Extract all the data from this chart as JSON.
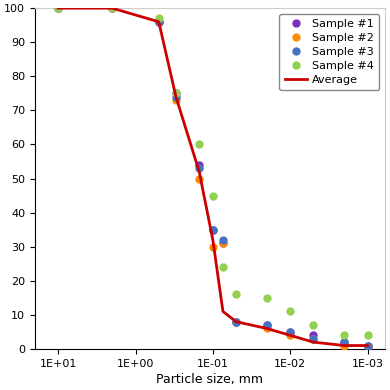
{
  "xlabel": "Particle size, mm",
  "ylim": [
    0,
    100
  ],
  "yticks": [
    0,
    10,
    20,
    30,
    40,
    50,
    60,
    70,
    80,
    90,
    100
  ],
  "sample1_x": [
    10,
    2.0,
    0.5,
    0.3,
    0.15,
    0.1,
    0.074,
    0.05,
    0.02,
    0.01,
    0.005,
    0.002,
    0.001
  ],
  "sample1_y": [
    100,
    100,
    96,
    75,
    54,
    35,
    31,
    8,
    7,
    5,
    4,
    2,
    1
  ],
  "sample1_color": "#7B2FBE",
  "sample2_x": [
    10,
    2.0,
    0.5,
    0.3,
    0.15,
    0.1,
    0.074,
    0.05,
    0.02,
    0.01,
    0.005,
    0.002,
    0.001
  ],
  "sample2_y": [
    100,
    100,
    96,
    73,
    50,
    30,
    31,
    8,
    6,
    4,
    3,
    1,
    1
  ],
  "sample2_color": "#FF8C00",
  "sample3_x": [
    10,
    2.0,
    0.5,
    0.3,
    0.15,
    0.1,
    0.074,
    0.05,
    0.02,
    0.01,
    0.005,
    0.002,
    0.001
  ],
  "sample3_y": [
    100,
    100,
    96,
    74,
    53,
    35,
    32,
    8,
    7,
    5,
    3,
    2,
    1
  ],
  "sample3_color": "#4472C4",
  "sample4_x": [
    10,
    2.0,
    0.5,
    0.3,
    0.15,
    0.1,
    0.074,
    0.05,
    0.02,
    0.01,
    0.005,
    0.002,
    0.001
  ],
  "sample4_y": [
    100,
    100,
    97,
    75,
    60,
    45,
    24,
    16,
    15,
    11,
    7,
    4,
    4
  ],
  "sample4_color": "#92D050",
  "avg_x": [
    10,
    2.0,
    0.5,
    0.3,
    0.15,
    0.1,
    0.074,
    0.05,
    0.02,
    0.01,
    0.005,
    0.002,
    0.001
  ],
  "avg_y": [
    100,
    100,
    96,
    74,
    52,
    32,
    11,
    8,
    6,
    4,
    2,
    1,
    1
  ],
  "avg_color": "#CC0000",
  "legend_labels": [
    "Sample #1",
    "Sample #2",
    "Sample #3",
    "Sample #4",
    "Average"
  ],
  "sample1_color_leg": "#7B2FBE",
  "sample2_color_leg": "#FF8C00",
  "sample3_color_leg": "#4472C4",
  "sample4_color_leg": "#92D050",
  "avg_color_leg": "#CC0000",
  "bg_color": "#FFFFFF",
  "marker_size": 5,
  "line_width": 2.0,
  "xlim_left": 20,
  "xlim_right": 0.0006
}
